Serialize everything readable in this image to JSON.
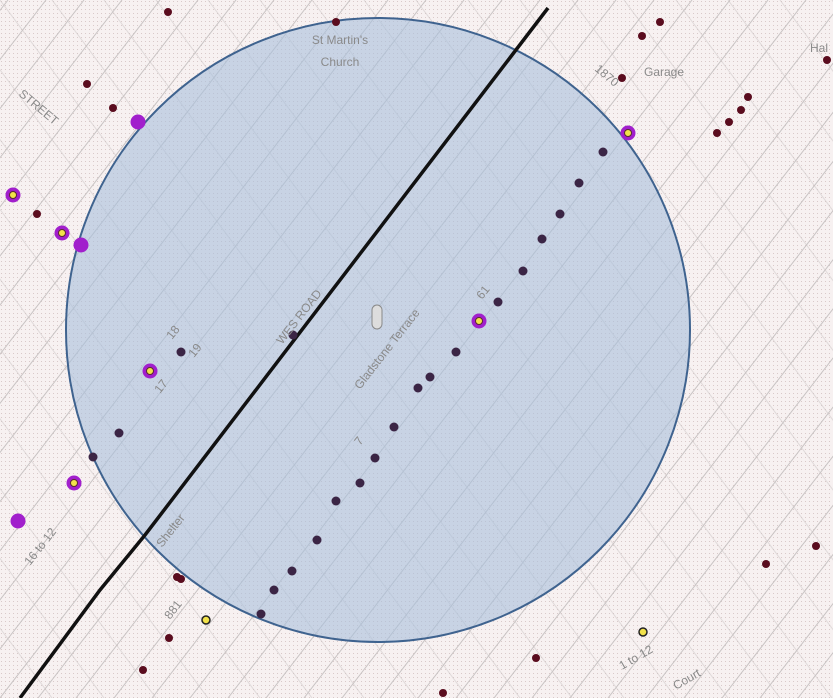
{
  "map": {
    "labels": {
      "church_1": "St Martin's",
      "church_2": "Church",
      "garage": "Garage",
      "hal": "Hal",
      "street": "STREET",
      "road": "WES ROAD",
      "terrace": "Gladstone Terrace",
      "shelter": "Shelter",
      "range_a": "1 to 12",
      "range_b": "16 to 12",
      "court": "Court",
      "num_881": "881",
      "num_18": "18",
      "num_19": "19",
      "num_17": "17",
      "num_61": "61",
      "num_1870": "1870",
      "num_7": "7"
    }
  }
}
